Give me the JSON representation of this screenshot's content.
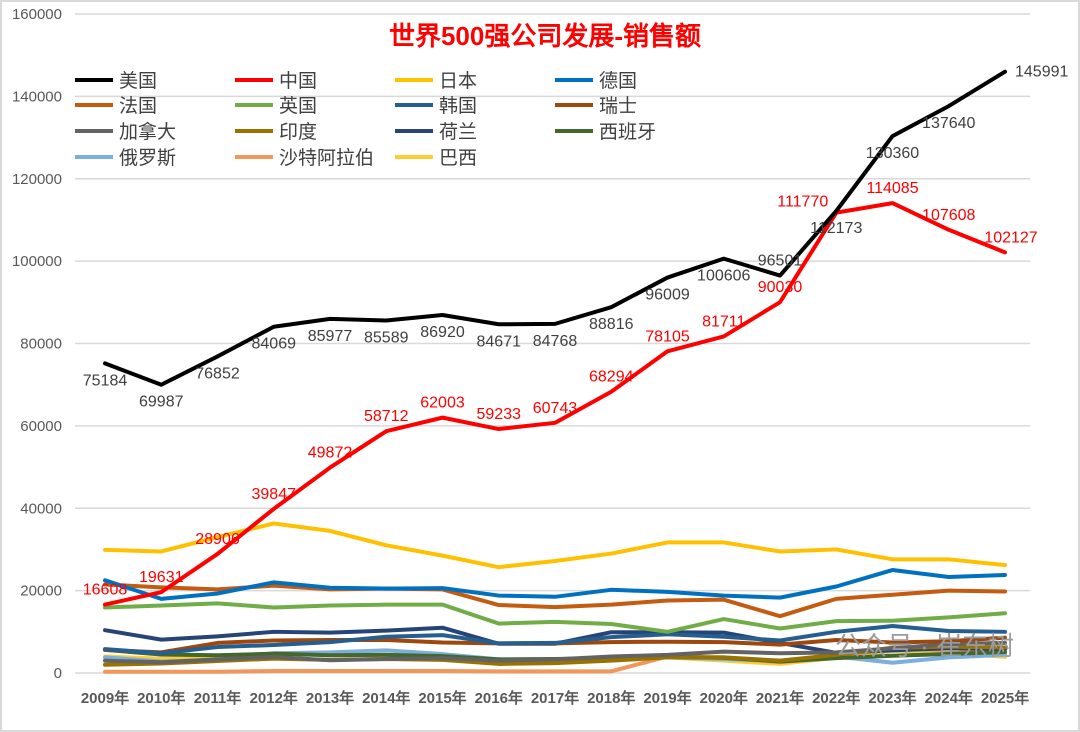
{
  "chart_data": {
    "type": "line",
    "title": "世界500强公司发展-销售额",
    "categories": [
      "2009年",
      "2010年",
      "2011年",
      "2012年",
      "2013年",
      "2014年",
      "2015年",
      "2016年",
      "2017年",
      "2018年",
      "2019年",
      "2020年",
      "2021年",
      "2022年",
      "2023年",
      "2024年",
      "2025年"
    ],
    "ylim": [
      0,
      160000
    ],
    "yticks": [
      "0",
      "20000",
      "40000",
      "60000",
      "80000",
      "100000",
      "120000",
      "140000",
      "160000"
    ],
    "grid": true,
    "legend_position": "top-left",
    "series": [
      {
        "name": "美国",
        "color": "#000000",
        "labeled": true,
        "label_color": "#404040",
        "values": [
          75184,
          69987,
          76852,
          84069,
          85977,
          85589,
          86920,
          84671,
          84768,
          88816,
          96009,
          100606,
          96501,
          112173,
          130360,
          137640,
          145991
        ]
      },
      {
        "name": "中国",
        "color": "#ff0000",
        "labeled": true,
        "label_color": "#ff0000",
        "values": [
          16608,
          19631,
          28906,
          39847,
          49872,
          58712,
          62003,
          59233,
          60743,
          68294,
          78105,
          81711,
          90030,
          111770,
          114085,
          107608,
          102127
        ]
      },
      {
        "name": "日本",
        "color": "#ffc000",
        "values": [
          29900,
          29500,
          33000,
          36300,
          34500,
          31000,
          28500,
          25700,
          27200,
          29000,
          31700,
          31700,
          29500,
          30000,
          27600,
          27600,
          26200
        ]
      },
      {
        "name": "德国",
        "color": "#0070c0",
        "values": [
          22500,
          18000,
          19300,
          22000,
          20700,
          20500,
          20600,
          18800,
          18500,
          20200,
          19700,
          18800,
          18300,
          21000,
          25000,
          23300,
          23800
        ]
      },
      {
        "name": "法国",
        "color": "#c55a11",
        "values": [
          21500,
          20800,
          20300,
          21200,
          20300,
          20500,
          20300,
          16500,
          16000,
          16600,
          17600,
          17800,
          13800,
          18000,
          19000,
          20000,
          19800
        ]
      },
      {
        "name": "英国",
        "color": "#70ad47",
        "values": [
          15900,
          16400,
          16900,
          15900,
          16400,
          16600,
          16600,
          12000,
          12400,
          11900,
          10000,
          13100,
          10800,
          12600,
          12700,
          13500,
          14500
        ]
      },
      {
        "name": "韩国",
        "color": "#255e91",
        "values": [
          5800,
          4800,
          6300,
          6800,
          7500,
          8800,
          9200,
          7200,
          7300,
          8700,
          9400,
          8800,
          7900,
          10000,
          11400,
          10200,
          10000
        ]
      },
      {
        "name": "瑞士",
        "color": "#9e480e",
        "values": [
          5600,
          5000,
          7300,
          7900,
          8000,
          8000,
          7400,
          7200,
          7200,
          7500,
          7600,
          7500,
          6900,
          8000,
          7400,
          7700,
          8600
        ]
      },
      {
        "name": "加拿大",
        "color": "#636363",
        "values": [
          3000,
          2600,
          3300,
          3900,
          3100,
          3400,
          3600,
          3000,
          3300,
          4000,
          4400,
          5200,
          4800,
          5000,
          6000,
          7000,
          7300
        ]
      },
      {
        "name": "印度",
        "color": "#997300",
        "values": [
          2000,
          2300,
          2900,
          3500,
          3200,
          3400,
          3200,
          2200,
          2400,
          3000,
          3800,
          3800,
          3000,
          4400,
          6100,
          6400,
          6200
        ]
      },
      {
        "name": "荷兰",
        "color": "#264478",
        "values": [
          10400,
          8100,
          8900,
          10000,
          9800,
          10300,
          11000,
          7100,
          7100,
          9900,
          9900,
          9800,
          7300,
          4900,
          5500,
          6000,
          5800
        ]
      },
      {
        "name": "西班牙",
        "color": "#43682b",
        "values": [
          5600,
          4500,
          4300,
          4700,
          4300,
          4400,
          4100,
          3300,
          3400,
          3600,
          3900,
          3700,
          2800,
          3600,
          4200,
          4600,
          5100
        ]
      },
      {
        "name": "俄罗斯",
        "color": "#7cafdd",
        "values": [
          3800,
          2800,
          3200,
          4800,
          5000,
          5500,
          4600,
          3300,
          3300,
          3400,
          3800,
          3400,
          2900,
          4000,
          2500,
          3800,
          4400
        ]
      },
      {
        "name": "沙特阿拉伯",
        "color": "#f1975a",
        "values": [
          300,
          300,
          300,
          500,
          500,
          500,
          500,
          400,
          400,
          400,
          4000,
          3800,
          2600,
          3800,
          6200,
          5400,
          4800
        ]
      },
      {
        "name": "巴西",
        "color": "#ffcd33",
        "values": [
          4000,
          3500,
          3700,
          4700,
          4400,
          4400,
          4100,
          3300,
          3200,
          3500,
          3800,
          3000,
          2200,
          3700,
          5400,
          4900,
          3900
        ]
      }
    ]
  },
  "watermark": "公众号 · 崔东树"
}
